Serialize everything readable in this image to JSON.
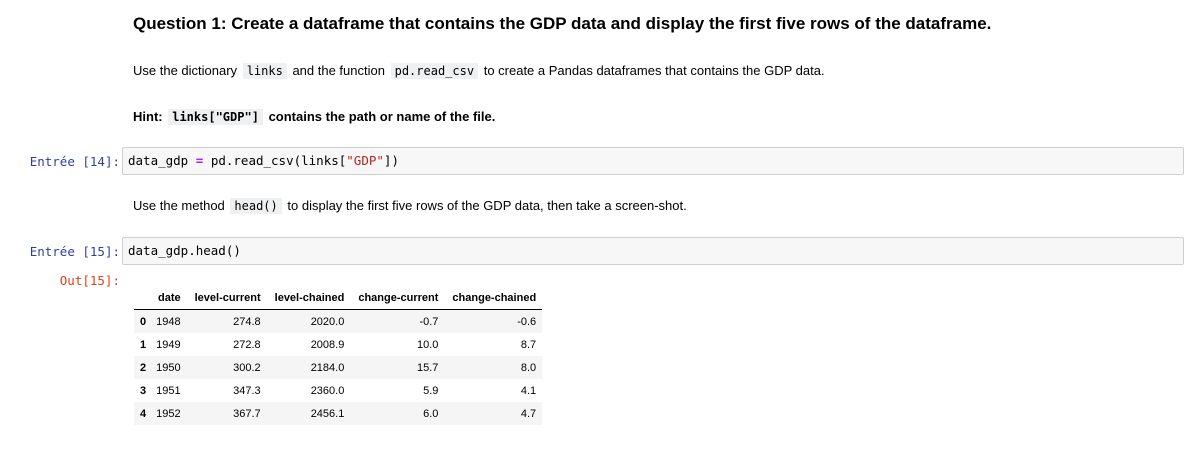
{
  "question": {
    "title": "Question 1: Create a dataframe that contains the GDP data and display the first five rows of the dataframe.",
    "instruction": {
      "t1": "Use the dictionary",
      "c1": "links",
      "t2": "and the function",
      "c2": "pd.read_csv",
      "t3": "to create a Pandas dataframes that contains the GDP data."
    },
    "hint": {
      "t1": "Hint:",
      "c1": "links[\"GDP\"]",
      "t2": "contains the path or name of the file."
    }
  },
  "cell14": {
    "prompt": "Entrée [14]:",
    "code": {
      "var": "data_gdp",
      "eq": "=",
      "call": "pd.read_csv(links[",
      "str": "\"GDP\"",
      "close": "])"
    }
  },
  "md2": {
    "t1": "Use the method",
    "c1": "head()",
    "t2": "to display the first five rows of the GDP data, then take a screen-shot."
  },
  "cell15": {
    "prompt": "Entrée [15]:",
    "code": "data_gdp.head()",
    "out_prompt": "Out[15]:"
  },
  "table": {
    "columns": [
      "",
      "date",
      "level-current",
      "level-chained",
      "change-current",
      "change-chained"
    ],
    "rows": [
      [
        "0",
        "1948",
        "274.8",
        "2020.0",
        "-0.7",
        "-0.6"
      ],
      [
        "1",
        "1949",
        "272.8",
        "2008.9",
        "10.0",
        "8.7"
      ],
      [
        "2",
        "1950",
        "300.2",
        "2184.0",
        "15.7",
        "8.0"
      ],
      [
        "3",
        "1951",
        "347.3",
        "2360.0",
        "5.9",
        "4.1"
      ],
      [
        "4",
        "1952",
        "367.7",
        "2456.1",
        "6.0",
        "4.7"
      ]
    ]
  }
}
